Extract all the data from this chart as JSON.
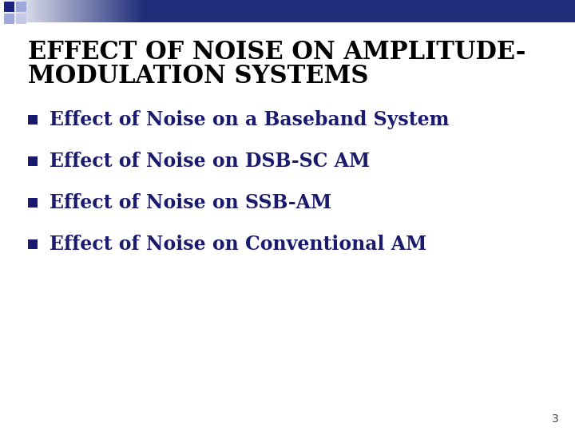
{
  "title_line1": "EFFECT OF NOISE ON AMPLITUDE-",
  "title_line2": "MODULATION SYSTEMS",
  "bullet_items": [
    "Effect of Noise on a Baseband System",
    "Effect of Noise on DSB-SC AM",
    "Effect of Noise on SSB-AM",
    "Effect of Noise on Conventional AM"
  ],
  "title_color": "#000000",
  "bullet_text_color": "#1a1a6e",
  "bullet_square_color": "#1a1a6e",
  "background_color": "#ffffff",
  "slide_number": "3",
  "title_fontsize": 22,
  "bullet_fontsize": 17,
  "header_dark_color": "#1f2d7a",
  "header_mid_color": "#7080c0",
  "header_light_color": "#ffffff",
  "sq1_color": "#1a237e",
  "sq2_color": "#9fa8da",
  "sq3_color": "#9fa8da",
  "sq4_color": "#c5cae9"
}
